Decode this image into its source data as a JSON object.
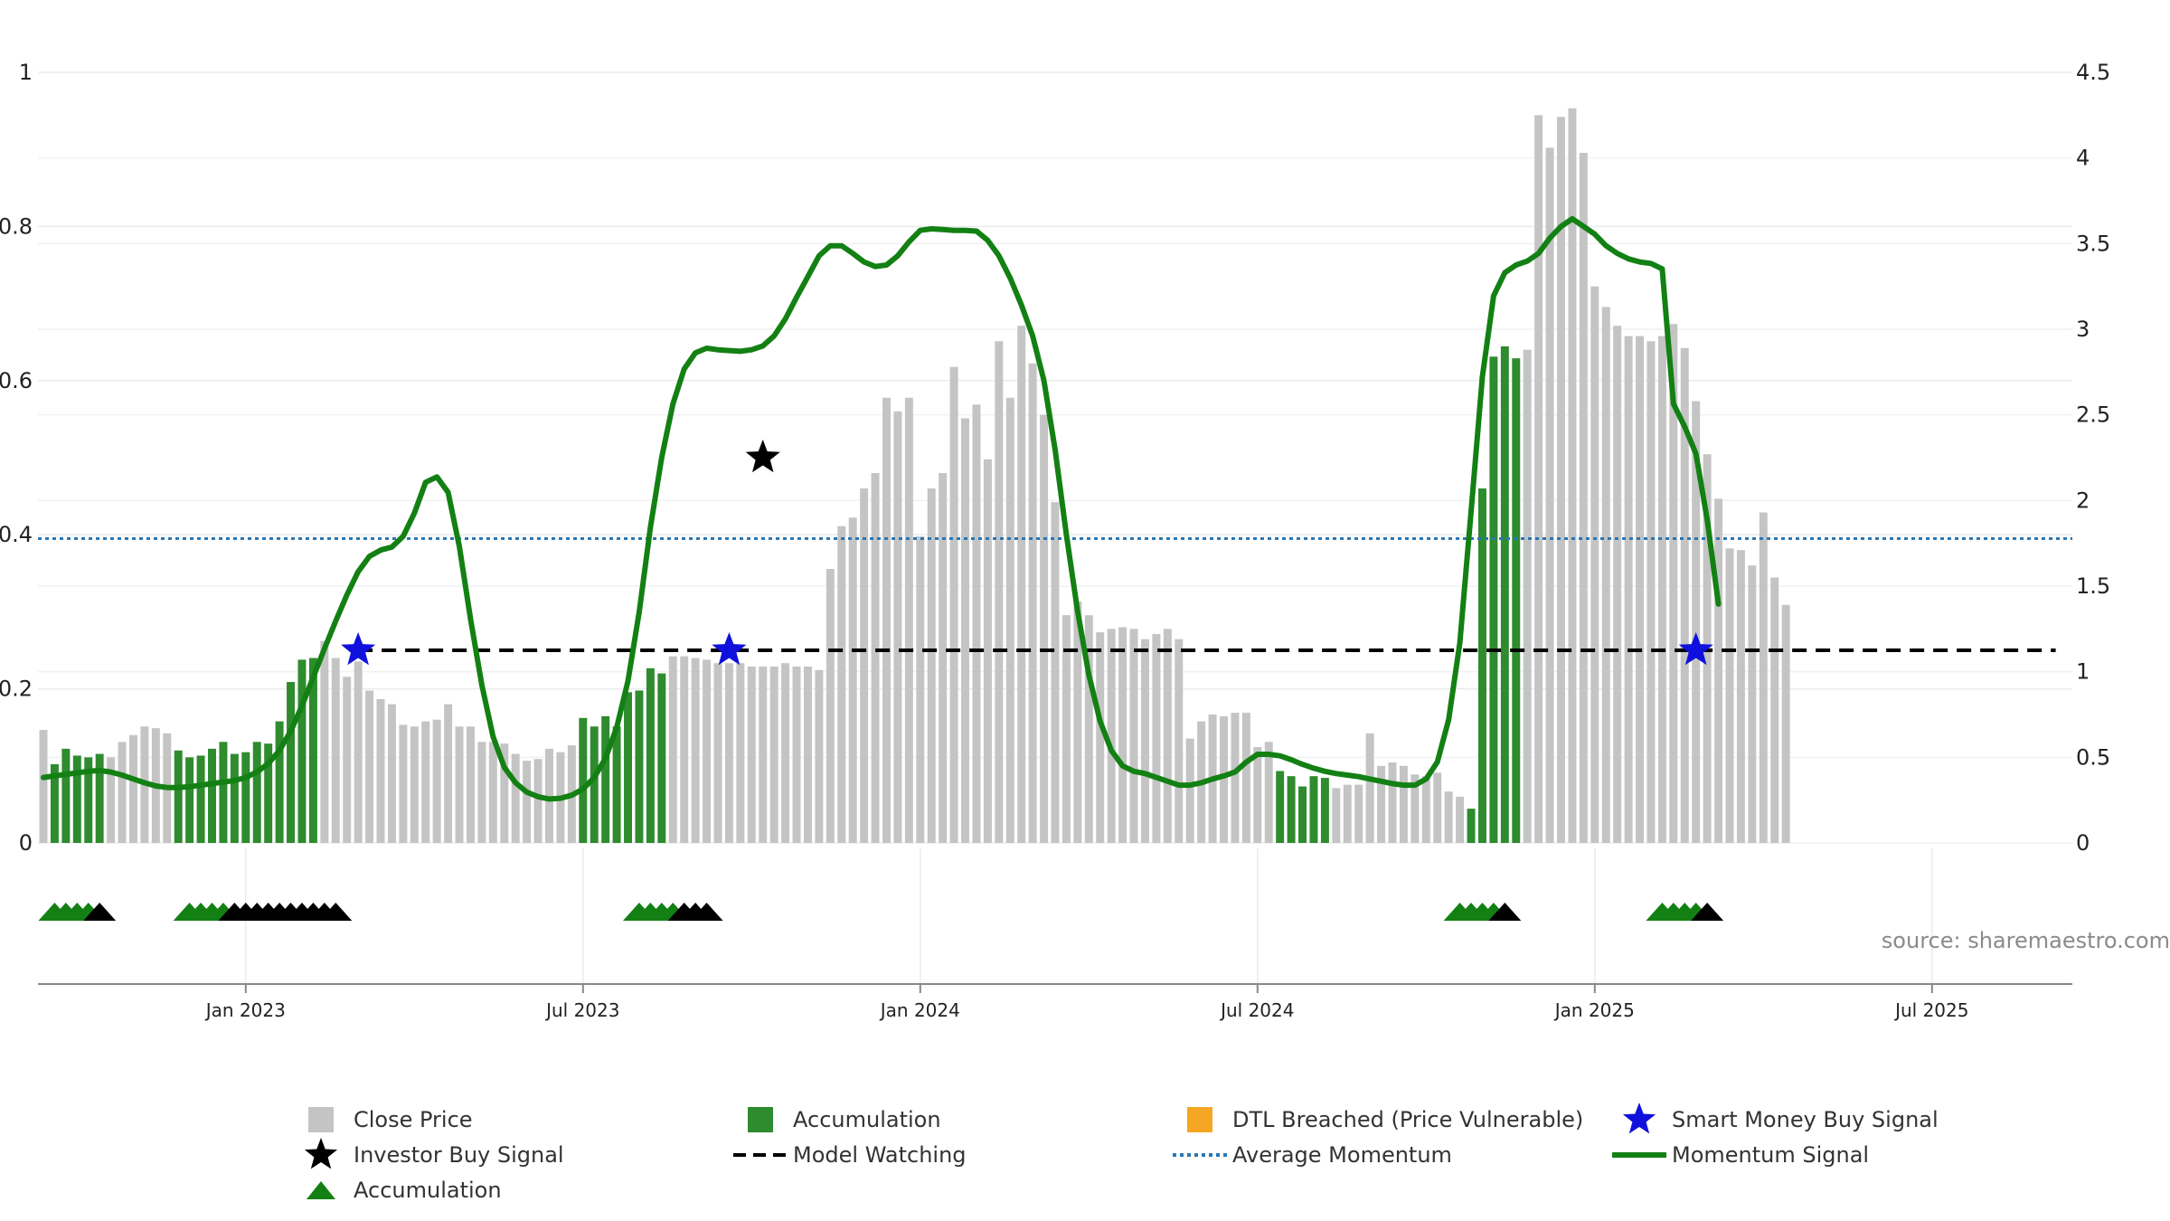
{
  "chart_data": {
    "type": "bar",
    "source_note": "source: sharemaestro.com",
    "x_axis": {
      "tick_labels": [
        "Jan 2023",
        "Jul 2023",
        "Jan 2024",
        "Jul 2024",
        "Jan 2025",
        "Jul 2025"
      ],
      "tick_weeks": [
        18,
        48,
        78,
        108,
        138,
        168
      ],
      "week_range": [
        0,
        180
      ]
    },
    "y_left": {
      "ylim": [
        0,
        1
      ],
      "ticks": [
        "0",
        "0.2",
        "0.4",
        "0.6",
        "0.8",
        "1"
      ],
      "tick_values": [
        0,
        0.2,
        0.4,
        0.6,
        0.8,
        1
      ]
    },
    "y_right": {
      "ylim": [
        0,
        4.5
      ],
      "ticks": [
        "0",
        "0.5",
        "1",
        "1.5",
        "2",
        "2.5",
        "3",
        "3.5",
        "4",
        "4.5"
      ],
      "tick_values": [
        0,
        0.5,
        1,
        1.5,
        2,
        2.5,
        3,
        3.5,
        4,
        4.5
      ]
    },
    "grid": true,
    "legend_placement": "bottom",
    "colors": {
      "close_price": "#c4c4c4",
      "accumulation": "#2e8b2e",
      "dtl_breached": "#f5a623",
      "smart_money": "#1010dd",
      "investor_signal": "#000000",
      "model_watching": "#000000",
      "avg_momentum": "#2a77b4",
      "momentum_signal": "#138013",
      "accum_marker": "#138013"
    },
    "series": [
      {
        "name": "Close Price",
        "kind": "bar",
        "axis": "right",
        "values": [
          0.66,
          0.46,
          0.55,
          0.51,
          0.5,
          0.52,
          0.5,
          0.59,
          0.63,
          0.68,
          0.67,
          0.64,
          0.54,
          0.5,
          0.51,
          0.55,
          0.59,
          0.52,
          0.53,
          0.59,
          0.58,
          0.71,
          0.94,
          1.07,
          1.08,
          1.18,
          1.08,
          0.97,
          1.06,
          0.89,
          0.84,
          0.81,
          0.69,
          0.68,
          0.71,
          0.72,
          0.81,
          0.68,
          0.68,
          0.59,
          0.59,
          0.58,
          0.52,
          0.48,
          0.49,
          0.55,
          0.53,
          0.57,
          0.73,
          0.68,
          0.74,
          0.68,
          0.88,
          0.89,
          1.02,
          0.99,
          1.09,
          1.09,
          1.08,
          1.07,
          1.05,
          1.05,
          1.05,
          1.03,
          1.03,
          1.03,
          1.05,
          1.03,
          1.03,
          1.01,
          1.6,
          1.85,
          1.9,
          2.07,
          2.16,
          2.6,
          2.52,
          2.6,
          1.79,
          2.07,
          2.16,
          2.78,
          2.48,
          2.56,
          2.24,
          2.93,
          2.6,
          3.02,
          2.8,
          2.5,
          1.99,
          1.33,
          1.41,
          1.33,
          1.23,
          1.25,
          1.26,
          1.25,
          1.19,
          1.22,
          1.25,
          1.19,
          0.61,
          0.71,
          0.75,
          0.74,
          0.76,
          0.76,
          0.56,
          0.59,
          0.42,
          0.39,
          0.33,
          0.39,
          0.38,
          0.32,
          0.34,
          0.34,
          0.64,
          0.45,
          0.47,
          0.45,
          0.4,
          0.39,
          0.41,
          0.3,
          0.27,
          0.2,
          2.07,
          2.84,
          2.9,
          2.83,
          2.88,
          4.25,
          4.06,
          4.24,
          4.29,
          4.03,
          3.25,
          3.13,
          3.02,
          2.96,
          2.96,
          2.93,
          2.96,
          3.03,
          2.89,
          2.58,
          2.27,
          2.01,
          1.72,
          1.71,
          1.62,
          1.93,
          1.55,
          1.39
        ]
      },
      {
        "name": "Accumulation",
        "kind": "bar-highlight",
        "axis": "right",
        "weeks": [
          1,
          2,
          3,
          4,
          5,
          12,
          13,
          14,
          15,
          16,
          17,
          18,
          19,
          20,
          21,
          22,
          23,
          24,
          48,
          49,
          50,
          51,
          52,
          53,
          54,
          55,
          110,
          111,
          112,
          113,
          114,
          127,
          128,
          129,
          130,
          131
        ]
      },
      {
        "name": "DTL Breached (Price Vulnerable)",
        "kind": "bar-highlight",
        "axis": "right",
        "weeks": []
      },
      {
        "name": "Momentum Signal",
        "kind": "line",
        "axis": "left",
        "values": [
          0.085,
          0.087,
          0.089,
          0.091,
          0.093,
          0.094,
          0.092,
          0.088,
          0.083,
          0.078,
          0.074,
          0.072,
          0.072,
          0.073,
          0.075,
          0.077,
          0.079,
          0.081,
          0.085,
          0.092,
          0.103,
          0.12,
          0.145,
          0.178,
          0.215,
          0.252,
          0.288,
          0.322,
          0.352,
          0.372,
          0.38,
          0.384,
          0.398,
          0.428,
          0.468,
          0.475,
          0.455,
          0.385,
          0.29,
          0.205,
          0.138,
          0.098,
          0.078,
          0.066,
          0.06,
          0.057,
          0.058,
          0.062,
          0.07,
          0.085,
          0.11,
          0.15,
          0.21,
          0.3,
          0.41,
          0.5,
          0.57,
          0.615,
          0.636,
          0.642,
          0.64,
          0.639,
          0.638,
          0.64,
          0.645,
          0.658,
          0.68,
          0.708,
          0.735,
          0.762,
          0.775,
          0.775,
          0.765,
          0.754,
          0.748,
          0.75,
          0.762,
          0.78,
          0.795,
          0.797,
          0.796,
          0.795,
          0.795,
          0.794,
          0.782,
          0.762,
          0.733,
          0.698,
          0.658,
          0.6,
          0.51,
          0.4,
          0.3,
          0.218,
          0.158,
          0.12,
          0.1,
          0.093,
          0.09,
          0.085,
          0.08,
          0.075,
          0.075,
          0.078,
          0.083,
          0.087,
          0.092,
          0.105,
          0.115,
          0.115,
          0.113,
          0.108,
          0.102,
          0.097,
          0.093,
          0.09,
          0.088,
          0.086,
          0.083,
          0.08,
          0.077,
          0.075,
          0.075,
          0.083,
          0.105,
          0.16,
          0.26,
          0.43,
          0.605,
          0.71,
          0.74,
          0.75,
          0.755,
          0.765,
          0.785,
          0.8,
          0.81,
          0.8,
          0.79,
          0.775,
          0.765,
          0.758,
          0.754,
          0.752,
          0.745,
          0.57,
          0.54,
          0.505,
          0.42,
          0.31
        ]
      },
      {
        "name": "Average Momentum",
        "kind": "hline",
        "axis": "left",
        "value": 0.395
      },
      {
        "name": "Model Watching",
        "kind": "segment",
        "axis": "left",
        "value": 0.25,
        "week_start": 28,
        "week_end": 179
      },
      {
        "name": "Smart Money Buy Signal",
        "kind": "marker",
        "axis": "left",
        "points": [
          [
            28,
            0.25
          ],
          [
            61,
            0.25
          ],
          [
            147,
            0.25
          ]
        ]
      },
      {
        "name": "Investor Buy Signal",
        "kind": "marker",
        "axis": "left",
        "points": [
          [
            64,
            0.5
          ]
        ]
      },
      {
        "name": "Accumulation",
        "kind": "triangle-strip",
        "green_weeks": [
          1,
          2,
          3,
          4,
          13,
          14,
          15,
          16,
          53,
          54,
          55,
          56,
          126,
          127,
          128,
          129,
          144,
          145,
          146,
          147
        ],
        "black_weeks": [
          5,
          17,
          18,
          19,
          20,
          21,
          22,
          23,
          24,
          25,
          26,
          57,
          58,
          59,
          130,
          148
        ]
      }
    ]
  },
  "legend": [
    {
      "label": "Close Price",
      "icon": "square-gray-icon"
    },
    {
      "label": "Accumulation",
      "icon": "square-green-icon"
    },
    {
      "label": "DTL Breached (Price Vulnerable)",
      "icon": "square-orange-icon"
    },
    {
      "label": "Smart Money Buy Signal",
      "icon": "blue-star-icon"
    },
    {
      "label": "Investor Buy Signal",
      "icon": "black-star-icon"
    },
    {
      "label": "Model Watching",
      "icon": "dashed-line-icon"
    },
    {
      "label": "Average Momentum",
      "icon": "dotted-line-icon"
    },
    {
      "label": "Momentum Signal",
      "icon": "green-line-icon"
    },
    {
      "label": "Accumulation",
      "icon": "green-triangle-icon"
    }
  ]
}
